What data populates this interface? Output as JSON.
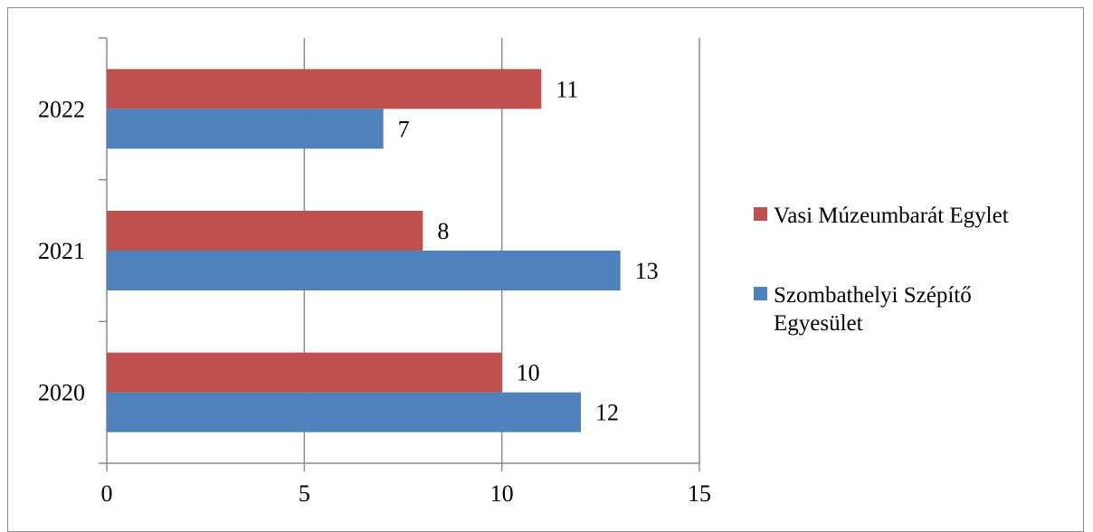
{
  "chart_data": {
    "type": "bar",
    "orientation": "horizontal",
    "categories": [
      "2020",
      "2021",
      "2022"
    ],
    "series": [
      {
        "name": "Szombathelyi Szépítő Egyesület",
        "values": [
          12,
          13,
          7
        ],
        "color": "#4f81bd"
      },
      {
        "name": "Vasi Múzeumbarát Egylet",
        "values": [
          10,
          8,
          11
        ],
        "color": "#c0504d"
      }
    ],
    "xlim": [
      0,
      15
    ],
    "xticks": [
      "0",
      "5",
      "10",
      "15"
    ],
    "grid": true,
    "data_labels": true,
    "legend": {
      "position": "right",
      "items": [
        {
          "lines": [
            "Vasi Múzeumbarát Egylet"
          ],
          "color": "#c0504d"
        },
        {
          "lines": [
            "Szombathelyi Szépítő",
            "Egyesület"
          ],
          "color": "#4f81bd"
        }
      ]
    }
  }
}
